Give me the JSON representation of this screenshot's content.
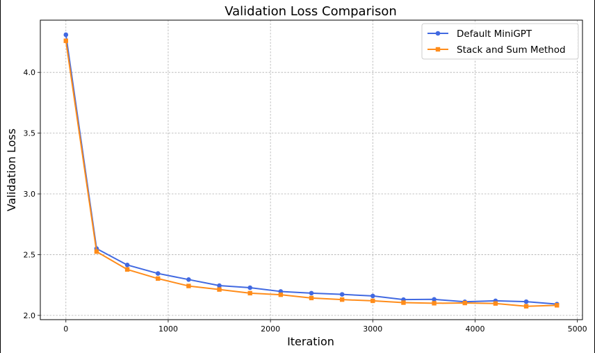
{
  "chart_data": {
    "type": "line",
    "title": "Validation Loss Comparison",
    "xlabel": "Iteration",
    "ylabel": "Validation Loss",
    "xlim": [
      -250,
      5050
    ],
    "ylim": [
      1.965,
      4.43
    ],
    "xticks": [
      0,
      1000,
      2000,
      3000,
      4000,
      5000
    ],
    "xtick_labels": [
      "0",
      "1000",
      "2000",
      "3000",
      "4000",
      "5000"
    ],
    "yticks": [
      2.0,
      2.5,
      3.0,
      3.5,
      4.0
    ],
    "ytick_labels": [
      "2.0",
      "2.5",
      "3.0",
      "3.5",
      "4.0"
    ],
    "grid": true,
    "legend_position": "top-right",
    "x": [
      0,
      300,
      600,
      900,
      1200,
      1500,
      1800,
      2100,
      2400,
      2700,
      3000,
      3300,
      3600,
      3900,
      4200,
      4500,
      4800
    ],
    "series": [
      {
        "name": "Default MiniGPT",
        "color": "#4169e1",
        "marker": "circle",
        "values": [
          4.31,
          2.55,
          2.415,
          2.345,
          2.295,
          2.245,
          2.228,
          2.197,
          2.183,
          2.173,
          2.16,
          2.13,
          2.132,
          2.112,
          2.12,
          2.113,
          2.093
        ]
      },
      {
        "name": "Stack and Sum Method",
        "color": "#ff8c1a",
        "marker": "square",
        "values": [
          4.26,
          2.525,
          2.378,
          2.303,
          2.242,
          2.213,
          2.183,
          2.17,
          2.143,
          2.13,
          2.12,
          2.105,
          2.1,
          2.102,
          2.098,
          2.075,
          2.083
        ]
      }
    ]
  }
}
